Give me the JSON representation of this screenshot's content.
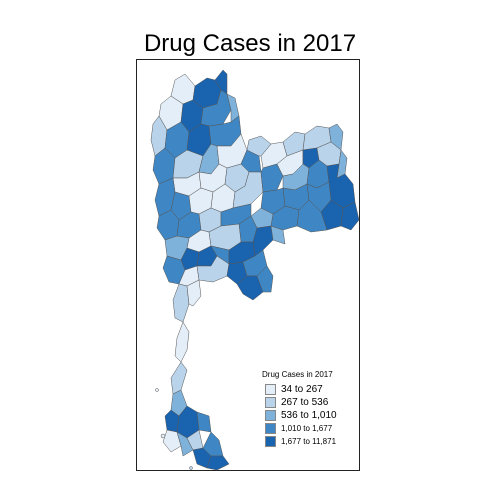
{
  "title": "Drug Cases in 2017",
  "legend": {
    "title": "Drug Cases in 2017",
    "items": [
      {
        "label": "34 to 267",
        "color": "#e4eef8"
      },
      {
        "label": "267 to 536",
        "color": "#b8d3ea"
      },
      {
        "label": "536 to 1,010",
        "color": "#7fb2da"
      },
      {
        "label": "1,010 to 1,677",
        "color": "#3f87c4"
      },
      {
        "label": "1,677 to 11,871",
        "color": "#1a63ae"
      }
    ]
  },
  "colors": {
    "border": "#555555",
    "frame": "#222222"
  }
}
